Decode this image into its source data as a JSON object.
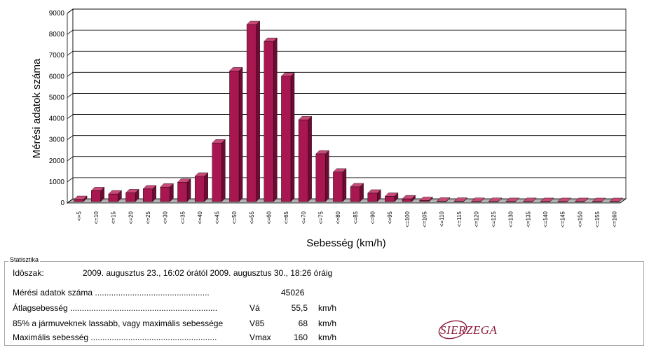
{
  "chart_data": {
    "type": "bar",
    "ylabel": "Mérési adatok száma",
    "xlabel": "Sebesség (km/h)",
    "ylim": [
      0,
      9000
    ],
    "yticks": [
      0,
      1000,
      2000,
      3000,
      4000,
      5000,
      6000,
      7000,
      8000,
      9000
    ],
    "grid": true,
    "categories": [
      "<=5",
      "<=10",
      "<=15",
      "<=20",
      "<=25",
      "<=30",
      "<=35",
      "<=40",
      "<=45",
      "<=50",
      "<=55",
      "<=60",
      "<=65",
      "<=70",
      "<=75",
      "<=80",
      "<=85",
      "<=90",
      "<=95",
      "<=100",
      "<=105",
      "<=110",
      "<=115",
      "<=120",
      "<=125",
      "<=130",
      "<=135",
      "<=140",
      "<=145",
      "<=150",
      "<=155",
      "<=160"
    ],
    "values": [
      100,
      520,
      360,
      420,
      600,
      690,
      920,
      1200,
      2780,
      6200,
      8400,
      7600,
      5950,
      3880,
      2260,
      1400,
      700,
      400,
      250,
      130,
      50,
      20,
      15,
      10,
      8,
      5,
      5,
      3,
      3,
      3,
      2,
      2
    ],
    "colors": {
      "bar": "#a8174f",
      "bar_dark": "#6e0a33",
      "bar_top": "#c94a78",
      "floor": "#b3b3b3",
      "grid": "#000000"
    }
  },
  "stats": {
    "legend": "Statisztika",
    "period_label": "Idöszak:",
    "period_value": "2009. augusztus 23., 16:02 órától 2009. augusztus 30., 18:26 óráig",
    "rows": [
      {
        "label": "Mérési adatok száma .................................................",
        "symbol": "",
        "value": "45026",
        "unit": ""
      },
      {
        "label": "Átlagsebesség ...............................................................",
        "symbol": "Vá",
        "value": "55,5",
        "unit": "km/h"
      },
      {
        "label": "85% a jármuveknek lassabb, vagy maximális sebessége",
        "symbol": "V85",
        "value": "68",
        "unit": "km/h"
      },
      {
        "label": "Maximális sebesség ......................................................",
        "symbol": "Vmax",
        "value": "160",
        "unit": "km/h"
      }
    ]
  },
  "logo": {
    "text": "SIERZEGA",
    "color": "#8b1a3a"
  }
}
